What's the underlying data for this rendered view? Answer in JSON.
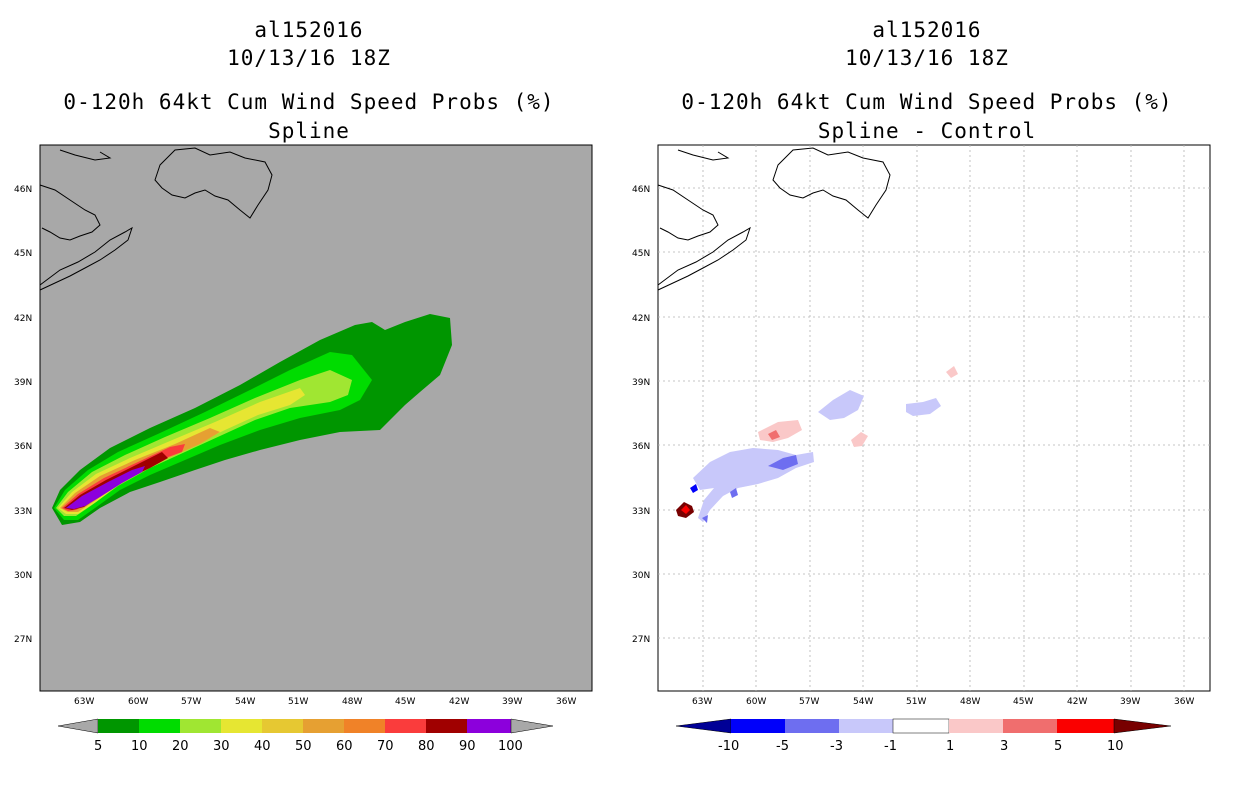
{
  "left_panel": {
    "title_line1": "al152016",
    "title_line2": "10/13/16 18Z",
    "title_line3": "0-120h 64kt Cum Wind Speed Probs (%)",
    "title_line4": "Spline",
    "background_color": "#a8a8a8",
    "colorbar": {
      "labels": [
        "5",
        "10",
        "20",
        "30",
        "40",
        "50",
        "60",
        "70",
        "80",
        "90",
        "100"
      ],
      "colors": [
        "#009600",
        "#00dc00",
        "#a0e632",
        "#e6e632",
        "#e6c832",
        "#e6a032",
        "#f08228",
        "#fa3c3c",
        "#a00000",
        "#8c00dc"
      ]
    }
  },
  "right_panel": {
    "title_line1": "al152016",
    "title_line2": "10/13/16 18Z",
    "title_line3": "0-120h 64kt Cum Wind Speed Probs (%)",
    "title_line4": "Spline - Control",
    "background_color": "#ffffff",
    "colorbar": {
      "labels": [
        "-10",
        "-5",
        "-3",
        "-1",
        "1",
        "3",
        "5",
        "10"
      ],
      "colors": [
        "#0000fa",
        "#6e6ef0",
        "#c8c8fa",
        "#ffffff",
        "#fac8c8",
        "#f06e6e",
        "#fa0000"
      ],
      "end_colors": [
        "#000096",
        "#780000"
      ]
    }
  },
  "axes": {
    "lat_labels": [
      "46N",
      "45N",
      "42N",
      "39N",
      "36N",
      "33N",
      "30N",
      "27N"
    ],
    "lon_labels": [
      "63W",
      "60W",
      "57W",
      "54W",
      "51W",
      "48W",
      "45W",
      "42W",
      "39W",
      "36W"
    ]
  }
}
